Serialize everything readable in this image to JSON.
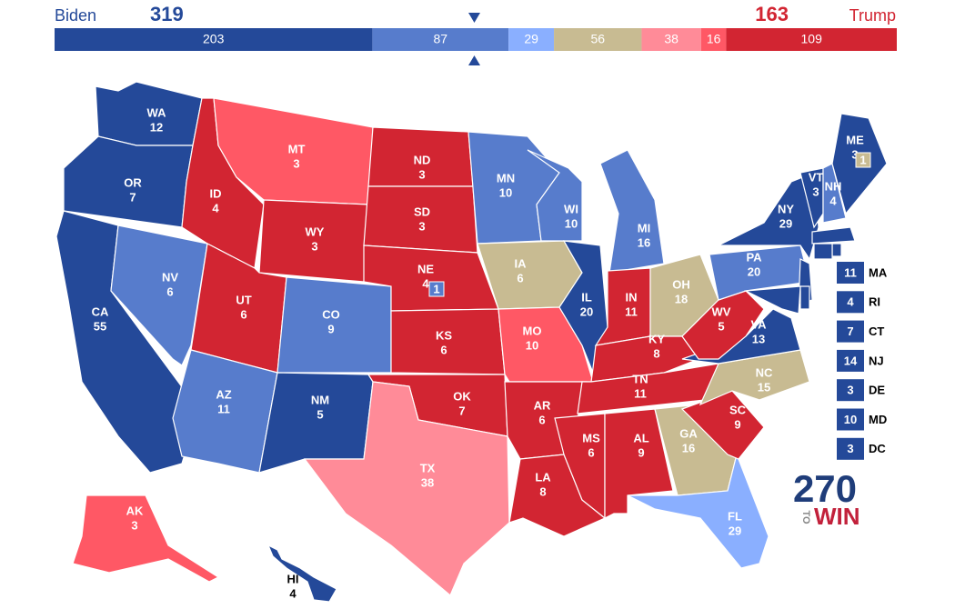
{
  "header": {
    "left_name": "Biden",
    "left_total": 319,
    "right_name": "Trump",
    "right_total": 163
  },
  "bar": [
    {
      "value": 203,
      "color": "#244999"
    },
    {
      "value": 87,
      "color": "#577ccc"
    },
    {
      "value": 29,
      "color": "#8aafff"
    },
    {
      "value": 56,
      "color": "#c8bb92"
    },
    {
      "value": 38,
      "color": "#ff8b98"
    },
    {
      "value": 16,
      "color": "#ff5865"
    },
    {
      "value": 109,
      "color": "#d22532"
    }
  ],
  "states": [
    {
      "abbr": "WA",
      "votes": 12,
      "color": "#244999"
    },
    {
      "abbr": "OR",
      "votes": 7,
      "color": "#244999"
    },
    {
      "abbr": "CA",
      "votes": 55,
      "color": "#244999"
    },
    {
      "abbr": "NV",
      "votes": 6,
      "color": "#577ccc"
    },
    {
      "abbr": "ID",
      "votes": 4,
      "color": "#d22532"
    },
    {
      "abbr": "MT",
      "votes": 3,
      "color": "#ff5865"
    },
    {
      "abbr": "WY",
      "votes": 3,
      "color": "#d22532"
    },
    {
      "abbr": "UT",
      "votes": 6,
      "color": "#d22532"
    },
    {
      "abbr": "AZ",
      "votes": 11,
      "color": "#577ccc"
    },
    {
      "abbr": "CO",
      "votes": 9,
      "color": "#577ccc"
    },
    {
      "abbr": "NM",
      "votes": 5,
      "color": "#244999"
    },
    {
      "abbr": "ND",
      "votes": 3,
      "color": "#d22532"
    },
    {
      "abbr": "SD",
      "votes": 3,
      "color": "#d22532"
    },
    {
      "abbr": "NE",
      "votes": 4,
      "color": "#d22532"
    },
    {
      "abbr": "KS",
      "votes": 6,
      "color": "#d22532"
    },
    {
      "abbr": "OK",
      "votes": 7,
      "color": "#d22532"
    },
    {
      "abbr": "TX",
      "votes": 38,
      "color": "#ff8b98"
    },
    {
      "abbr": "MN",
      "votes": 10,
      "color": "#577ccc"
    },
    {
      "abbr": "IA",
      "votes": 6,
      "color": "#c8bb92"
    },
    {
      "abbr": "MO",
      "votes": 10,
      "color": "#ff5865"
    },
    {
      "abbr": "AR",
      "votes": 6,
      "color": "#d22532"
    },
    {
      "abbr": "LA",
      "votes": 8,
      "color": "#d22532"
    },
    {
      "abbr": "WI",
      "votes": 10,
      "color": "#577ccc"
    },
    {
      "abbr": "IL",
      "votes": 20,
      "color": "#244999"
    },
    {
      "abbr": "MI",
      "votes": 16,
      "color": "#577ccc"
    },
    {
      "abbr": "IN",
      "votes": 11,
      "color": "#d22532"
    },
    {
      "abbr": "OH",
      "votes": 18,
      "color": "#c8bb92"
    },
    {
      "abbr": "KY",
      "votes": 8,
      "color": "#d22532"
    },
    {
      "abbr": "TN",
      "votes": 11,
      "color": "#d22532"
    },
    {
      "abbr": "MS",
      "votes": 6,
      "color": "#d22532"
    },
    {
      "abbr": "AL",
      "votes": 9,
      "color": "#d22532"
    },
    {
      "abbr": "GA",
      "votes": 16,
      "color": "#c8bb92"
    },
    {
      "abbr": "FL",
      "votes": 29,
      "color": "#8aafff"
    },
    {
      "abbr": "SC",
      "votes": 9,
      "color": "#d22532"
    },
    {
      "abbr": "NC",
      "votes": 15,
      "color": "#c8bb92"
    },
    {
      "abbr": "VA",
      "votes": 13,
      "color": "#244999"
    },
    {
      "abbr": "WV",
      "votes": 5,
      "color": "#d22532"
    },
    {
      "abbr": "PA",
      "votes": 20,
      "color": "#577ccc"
    },
    {
      "abbr": "NY",
      "votes": 29,
      "color": "#244999"
    },
    {
      "abbr": "VT",
      "votes": 3,
      "color": "#244999"
    },
    {
      "abbr": "NH",
      "votes": 4,
      "color": "#577ccc"
    },
    {
      "abbr": "ME",
      "votes": 3,
      "color": "#244999"
    },
    {
      "abbr": "AK",
      "votes": 3,
      "color": "#ff5865"
    },
    {
      "abbr": "HI",
      "votes": 4,
      "color": "#244999"
    }
  ],
  "districts": [
    {
      "votes": 1,
      "color": "#577ccc"
    },
    {
      "votes": 1,
      "color": "#c8bb92"
    }
  ],
  "small_states": [
    {
      "abbr": "MA",
      "votes": 11,
      "color": "#244999"
    },
    {
      "abbr": "RI",
      "votes": 4,
      "color": "#244999"
    },
    {
      "abbr": "CT",
      "votes": 7,
      "color": "#244999"
    },
    {
      "abbr": "NJ",
      "votes": 14,
      "color": "#244999"
    },
    {
      "abbr": "DE",
      "votes": 3,
      "color": "#244999"
    },
    {
      "abbr": "MD",
      "votes": 10,
      "color": "#244999"
    },
    {
      "abbr": "DC",
      "votes": 3,
      "color": "#244999"
    }
  ],
  "logo": {
    "number": "270",
    "to": "TO",
    "win": "WIN"
  }
}
